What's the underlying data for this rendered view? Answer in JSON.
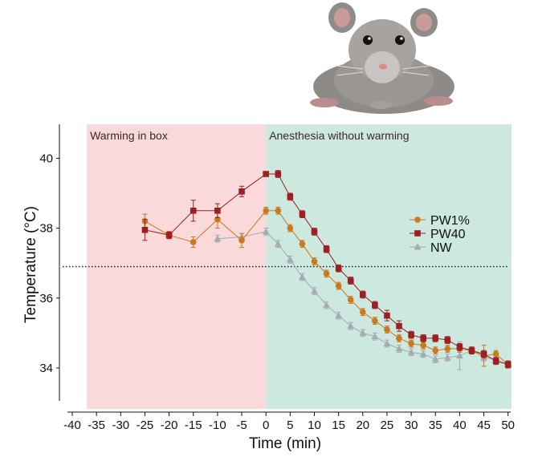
{
  "chart_data": {
    "type": "line",
    "xlabel": "Time (min)",
    "ylabel": "Temperature (°C)",
    "xlim": [
      -40,
      50
    ],
    "ylim": [
      33,
      41
    ],
    "x_ticks": [
      -40,
      -35,
      -30,
      -25,
      -20,
      -15,
      -10,
      -5,
      0,
      5,
      10,
      15,
      20,
      25,
      30,
      35,
      40,
      45,
      50
    ],
    "y_ticks": [
      34,
      36,
      38,
      40
    ],
    "reference_line_y": 36.9,
    "regions": [
      {
        "label": "Warming in box",
        "x_start": -37,
        "x_end": 0,
        "color": "#f9d9da"
      },
      {
        "label": "Anesthesia without warming",
        "x_start": 0,
        "x_end": 51.5,
        "color": "#cde8de"
      }
    ],
    "series": [
      {
        "name": "PW1%",
        "color": "#c87a1e",
        "marker": "circle",
        "points": [
          [
            -25,
            38.2,
            0.2
          ],
          [
            -20,
            37.8,
            0.1
          ],
          [
            -15,
            37.6,
            0.15
          ],
          [
            -10,
            38.25,
            0.25
          ],
          [
            -5,
            37.65,
            0.2
          ],
          [
            0,
            38.5,
            0.1
          ],
          [
            2.5,
            38.5,
            0.1
          ],
          [
            5,
            38.0,
            0.1
          ],
          [
            7.5,
            37.55,
            0.1
          ],
          [
            10,
            37.05,
            0.1
          ],
          [
            12.5,
            36.7,
            0.1
          ],
          [
            15,
            36.35,
            0.1
          ],
          [
            17.5,
            35.95,
            0.1
          ],
          [
            20,
            35.6,
            0.1
          ],
          [
            22.5,
            35.35,
            0.1
          ],
          [
            25,
            35.1,
            0.1
          ],
          [
            27.5,
            34.85,
            0.1
          ],
          [
            30,
            34.7,
            0.1
          ],
          [
            32.5,
            34.65,
            0.1
          ],
          [
            35,
            34.5,
            0.1
          ],
          [
            37.5,
            34.55,
            0.1
          ],
          [
            40,
            34.55,
            0.1
          ],
          [
            42.5,
            34.5,
            0.1
          ],
          [
            45,
            34.35,
            0.3
          ],
          [
            47.5,
            34.4,
            0.1
          ],
          [
            50,
            34.1,
            0.1
          ]
        ]
      },
      {
        "name": "PW40",
        "color": "#9b1f23",
        "marker": "square",
        "points": [
          [
            -25,
            37.95,
            0.3
          ],
          [
            -20,
            37.8,
            0.1
          ],
          [
            -15,
            38.5,
            0.3
          ],
          [
            -10,
            38.5,
            0.2
          ],
          [
            -5,
            39.05,
            0.15
          ],
          [
            0,
            39.55,
            0.05
          ],
          [
            2.5,
            39.55,
            0.1
          ],
          [
            5,
            38.9,
            0.1
          ],
          [
            7.5,
            38.4,
            0.1
          ],
          [
            10,
            37.9,
            0.1
          ],
          [
            12.5,
            37.4,
            0.1
          ],
          [
            15,
            36.85,
            0.1
          ],
          [
            17.5,
            36.5,
            0.1
          ],
          [
            20,
            36.1,
            0.1
          ],
          [
            22.5,
            35.8,
            0.1
          ],
          [
            25,
            35.5,
            0.15
          ],
          [
            27.5,
            35.2,
            0.15
          ],
          [
            30,
            34.95,
            0.1
          ],
          [
            32.5,
            34.85,
            0.1
          ],
          [
            35,
            34.85,
            0.1
          ],
          [
            37.5,
            34.8,
            0.1
          ],
          [
            40,
            34.6,
            0.1
          ],
          [
            42.5,
            34.5,
            0.1
          ],
          [
            45,
            34.4,
            0.1
          ],
          [
            47.5,
            34.2,
            0.1
          ],
          [
            50,
            34.1,
            0.1
          ]
        ]
      },
      {
        "name": "NW",
        "color": "#a3abb3",
        "marker": "triangle",
        "points": [
          [
            -10,
            37.7,
            0.1
          ],
          [
            -5,
            37.75,
            0.1
          ],
          [
            0,
            37.9,
            0.1
          ],
          [
            2.5,
            37.55,
            0.1
          ],
          [
            5,
            37.1,
            0.1
          ],
          [
            7.5,
            36.6,
            0.1
          ],
          [
            10,
            36.2,
            0.1
          ],
          [
            12.5,
            35.8,
            0.1
          ],
          [
            15,
            35.5,
            0.1
          ],
          [
            17.5,
            35.2,
            0.1
          ],
          [
            20,
            35.0,
            0.1
          ],
          [
            22.5,
            34.9,
            0.1
          ],
          [
            25,
            34.7,
            0.1
          ],
          [
            27.5,
            34.55,
            0.1
          ],
          [
            30,
            34.45,
            0.1
          ],
          [
            32.5,
            34.4,
            0.1
          ],
          [
            35,
            34.25,
            0.1
          ],
          [
            37.5,
            34.3,
            0.1
          ],
          [
            40,
            34.35,
            0.4
          ],
          [
            42.5,
            34.5,
            0.1
          ],
          [
            45,
            34.3,
            0.1
          ],
          [
            47.5,
            34.25,
            0.1
          ],
          [
            50,
            34.1,
            0.1
          ]
        ]
      }
    ]
  }
}
